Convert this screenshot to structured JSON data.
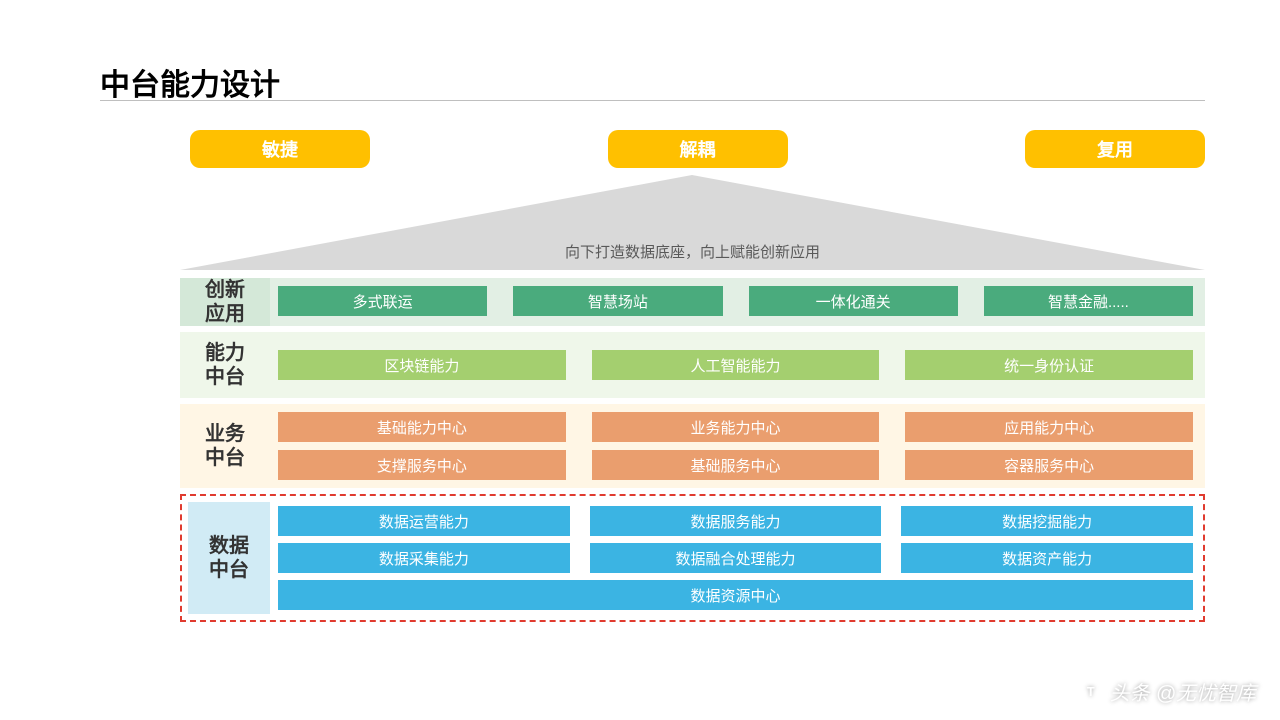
{
  "title": "中台能力设计",
  "pills": {
    "items": [
      "敏捷",
      "解耦",
      "复用"
    ],
    "bg": "#ffc000",
    "fg": "#ffffff"
  },
  "triangle": {
    "text": "向下打造数据底座，向上赋能创新应用",
    "fill": "#d9d9d9",
    "text_color": "#595959"
  },
  "layers": [
    {
      "id": "innovation",
      "label": "创新\n应用",
      "bg": "#e2efe4",
      "label_bg": "#d4e8d8",
      "cell_bg": "#4aab7d",
      "rows": [
        [
          "多式联运",
          "智慧场站",
          "一体化通关",
          "智慧金融....."
        ]
      ]
    },
    {
      "id": "capability",
      "label": "能力\n中台",
      "bg": "#eff7ea",
      "label_bg": "#eff7ea",
      "cell_bg": "#a4cf6f",
      "rows": [
        [
          "区块链能力",
          "人工智能能力",
          "统一身份认证"
        ]
      ]
    },
    {
      "id": "business",
      "label": "业务\n中台",
      "bg": "#fff6e5",
      "label_bg": "#fff6e5",
      "cell_bg": "#ea9e6e",
      "rows": [
        [
          "基础能力中心",
          "业务能力中心",
          "应用能力中心"
        ],
        [
          "支撑服务中心",
          "基础服务中心",
          "容器服务中心"
        ]
      ]
    },
    {
      "id": "data",
      "label": "数据\n中台",
      "bg": "#ffffff",
      "label_bg": "#d1ebf5",
      "cell_bg": "#3bb4e3",
      "border": "#e03b2f",
      "rows": [
        [
          "数据运营能力",
          "数据服务能力",
          "数据挖掘能力"
        ],
        [
          "数据采集能力",
          "数据融合处理能力",
          "数据资产能力"
        ],
        [
          "数据资源中心"
        ]
      ]
    }
  ],
  "watermark": {
    "prefix": "头条",
    "text": "@无忧智库"
  }
}
